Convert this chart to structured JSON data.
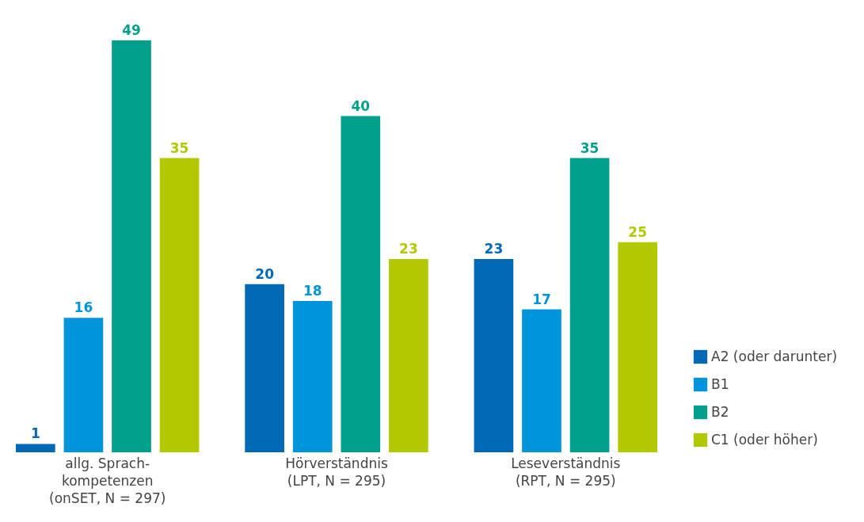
{
  "chart_data": {
    "type": "bar",
    "categories": [
      "allg. Sprach-\nkompetenzen\n(onSET, N = 297)",
      "Hörverständnis\n(LPT, N = 295)",
      "Leseverständnis\n(RPT, N = 295)"
    ],
    "series": [
      {
        "name": "A2 (oder darunter)",
        "color": "#0068b4",
        "values": [
          1,
          20,
          23
        ]
      },
      {
        "name": "B1",
        "color": "#0095db",
        "values": [
          16,
          18,
          17
        ]
      },
      {
        "name": "B2",
        "color": "#00a08a",
        "values": [
          49,
          40,
          35
        ]
      },
      {
        "name": "C1 (oder höher)",
        "color": "#b2c800",
        "values": [
          35,
          23,
          25
        ]
      }
    ],
    "data_labels": true,
    "legend": "bottom right",
    "grid": false
  }
}
